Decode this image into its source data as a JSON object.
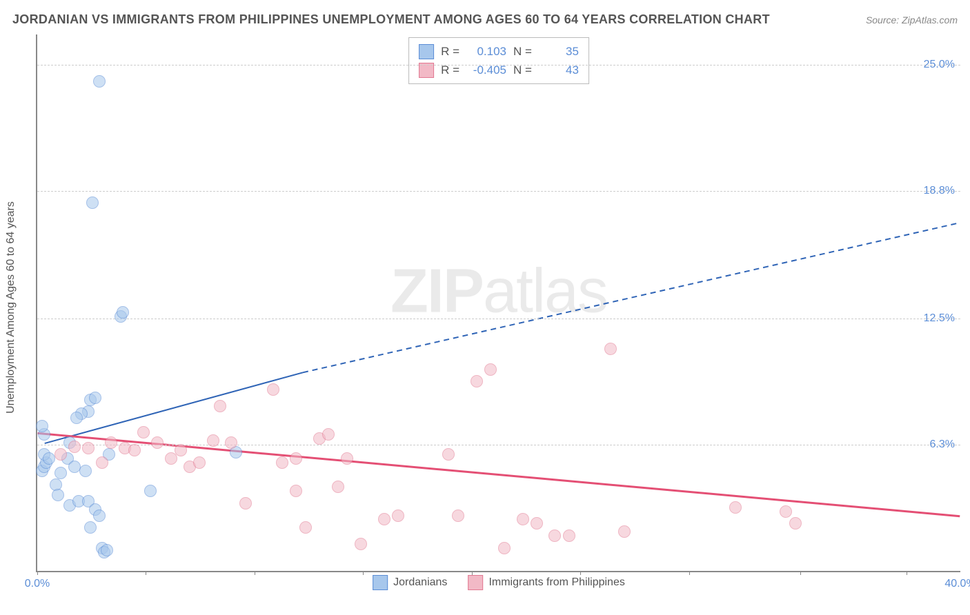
{
  "title": "JORDANIAN VS IMMIGRANTS FROM PHILIPPINES UNEMPLOYMENT AMONG AGES 60 TO 64 YEARS CORRELATION CHART",
  "source_label": "Source: ZipAtlas.com",
  "ylabel": "Unemployment Among Ages 60 to 64 years",
  "watermark_a": "ZIP",
  "watermark_b": "atlas",
  "chart": {
    "type": "scatter",
    "xlim": [
      0,
      40
    ],
    "ylim": [
      0,
      26.5
    ],
    "xtick_left": "0.0%",
    "xtick_right": "40.0%",
    "yticks": [
      {
        "v": 25.0,
        "label": "25.0%"
      },
      {
        "v": 18.8,
        "label": "18.8%"
      },
      {
        "v": 12.5,
        "label": "12.5%"
      },
      {
        "v": 6.3,
        "label": "6.3%"
      }
    ],
    "xtick_marks": [
      0,
      4.7,
      9.4,
      14.1,
      18.8,
      23.5,
      28.2,
      33.0,
      37.6
    ],
    "grid_color": "#cccccc",
    "axis_color": "#888888",
    "background_color": "#ffffff",
    "tick_label_color": "#5b8dd6",
    "series": [
      {
        "name": "Jordanians",
        "fill": "#a7c7ec",
        "stroke": "#5b8dd6",
        "R": "0.103",
        "N": "35",
        "trend": {
          "solid": {
            "x1": 0.3,
            "y1": 6.3,
            "x2": 11.5,
            "y2": 9.8
          },
          "dashed": {
            "x1": 11.5,
            "y1": 9.8,
            "x2": 40,
            "y2": 17.2
          },
          "color": "#2f64b6",
          "width": 2
        },
        "points": [
          [
            0.2,
            5.0
          ],
          [
            0.3,
            5.2
          ],
          [
            0.4,
            5.4
          ],
          [
            0.3,
            5.8
          ],
          [
            0.5,
            5.6
          ],
          [
            0.3,
            6.8
          ],
          [
            0.2,
            7.2
          ],
          [
            2.7,
            24.2
          ],
          [
            2.4,
            18.2
          ],
          [
            3.6,
            12.6
          ],
          [
            3.7,
            12.8
          ],
          [
            2.3,
            8.5
          ],
          [
            2.5,
            8.6
          ],
          [
            2.2,
            7.9
          ],
          [
            1.9,
            7.8
          ],
          [
            1.7,
            7.6
          ],
          [
            1.4,
            6.4
          ],
          [
            1.3,
            5.6
          ],
          [
            1.6,
            5.2
          ],
          [
            2.1,
            5.0
          ],
          [
            1.0,
            4.9
          ],
          [
            0.8,
            4.3
          ],
          [
            1.4,
            3.3
          ],
          [
            1.8,
            3.5
          ],
          [
            2.2,
            3.5
          ],
          [
            2.5,
            3.1
          ],
          [
            2.7,
            2.8
          ],
          [
            2.3,
            2.2
          ],
          [
            2.8,
            1.2
          ],
          [
            2.9,
            1.0
          ],
          [
            3.0,
            1.1
          ],
          [
            3.1,
            5.8
          ],
          [
            4.9,
            4.0
          ],
          [
            8.6,
            5.9
          ],
          [
            0.9,
            3.8
          ]
        ]
      },
      {
        "name": "Immigrants from Philippines",
        "fill": "#f2b9c6",
        "stroke": "#e17992",
        "R": "-0.405",
        "N": "43",
        "trend": {
          "solid": {
            "x1": 0,
            "y1": 6.8,
            "x2": 40,
            "y2": 2.7
          },
          "color": "#e44f74",
          "width": 3
        },
        "points": [
          [
            1.0,
            5.8
          ],
          [
            1.6,
            6.2
          ],
          [
            2.2,
            6.1
          ],
          [
            2.8,
            5.4
          ],
          [
            3.2,
            6.4
          ],
          [
            3.8,
            6.1
          ],
          [
            4.2,
            6.0
          ],
          [
            4.6,
            6.9
          ],
          [
            5.2,
            6.4
          ],
          [
            5.8,
            5.6
          ],
          [
            6.2,
            6.0
          ],
          [
            6.6,
            5.2
          ],
          [
            7.0,
            5.4
          ],
          [
            7.6,
            6.5
          ],
          [
            7.9,
            8.2
          ],
          [
            8.4,
            6.4
          ],
          [
            9.0,
            3.4
          ],
          [
            10.2,
            9.0
          ],
          [
            10.6,
            5.4
          ],
          [
            11.2,
            5.6
          ],
          [
            11.6,
            2.2
          ],
          [
            12.2,
            6.6
          ],
          [
            12.6,
            6.8
          ],
          [
            13.0,
            4.2
          ],
          [
            13.4,
            5.6
          ],
          [
            15.0,
            2.6
          ],
          [
            15.6,
            2.8
          ],
          [
            11.2,
            4.0
          ],
          [
            17.8,
            5.8
          ],
          [
            19.0,
            9.4
          ],
          [
            19.6,
            10.0
          ],
          [
            21.0,
            2.6
          ],
          [
            21.6,
            2.4
          ],
          [
            22.4,
            1.8
          ],
          [
            23.0,
            1.8
          ],
          [
            24.8,
            11.0
          ],
          [
            25.4,
            2.0
          ],
          [
            20.2,
            1.2
          ],
          [
            30.2,
            3.2
          ],
          [
            32.4,
            3.0
          ],
          [
            32.8,
            2.4
          ],
          [
            18.2,
            2.8
          ],
          [
            14.0,
            1.4
          ]
        ]
      }
    ]
  },
  "legend_labels": {
    "r_label": "R =",
    "n_label": "N ="
  }
}
